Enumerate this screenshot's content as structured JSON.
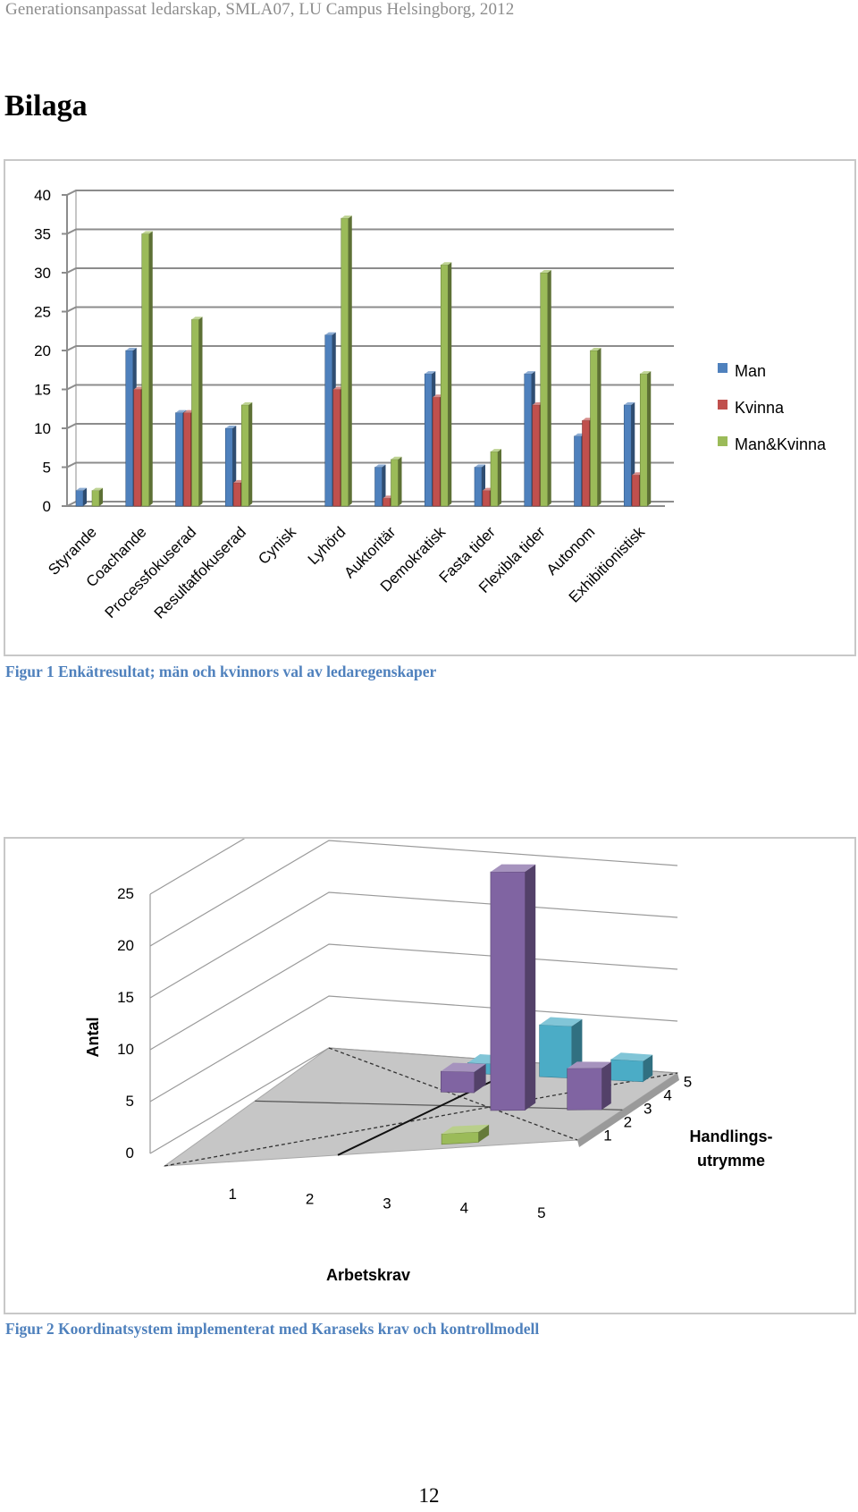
{
  "header": {
    "running_title": "Generationsanpassat ledarskap, SMLA07, LU Campus Helsingborg, 2012"
  },
  "section": {
    "title": "Bilaga"
  },
  "figure1": {
    "caption": "Figur 1 Enkätresultat; män och kvinnors val av ledaregenskaper",
    "chart_data": {
      "type": "bar",
      "title": "",
      "xlabel": "",
      "ylabel": "",
      "ylim": [
        0,
        40
      ],
      "yticks": [
        0,
        5,
        10,
        15,
        20,
        25,
        30,
        35,
        40
      ],
      "grid": true,
      "legend_position": "right",
      "categories": [
        "Styrande",
        "Coachande",
        "Processfokuserad",
        "Resultatfokuserad",
        "Cynisk",
        "Lyhörd",
        "Auktoritär",
        "Demokratisk",
        "Fasta tider",
        "Flexibla tider",
        "Autonom",
        "Exhibitionistisk"
      ],
      "series": [
        {
          "name": "Man",
          "color": "#4f81bd",
          "values": [
            2,
            20,
            12,
            10,
            0,
            22,
            5,
            17,
            5,
            17,
            9,
            13
          ]
        },
        {
          "name": "Kvinna",
          "color": "#c0504d",
          "values": [
            0,
            15,
            12,
            3,
            0,
            15,
            1,
            14,
            2,
            13,
            11,
            4
          ]
        },
        {
          "name": "Man&Kvinna",
          "color": "#9bbb59",
          "values": [
            2,
            35,
            24,
            13,
            0,
            37,
            6,
            31,
            7,
            30,
            20,
            17
          ]
        }
      ]
    }
  },
  "figure2": {
    "caption": "Figur 2 Koordinatsystem implementerat med Karaseks krav och kontrollmodell",
    "chart_data": {
      "type": "bar",
      "projection": "3d",
      "zlabel": "Antal",
      "xlabel": "Arbetskrav",
      "ylabel": "Handlings-utrymme",
      "zlim": [
        0,
        25
      ],
      "zticks": [
        0,
        5,
        10,
        15,
        20,
        25
      ],
      "x_ticks": [
        "1",
        "2",
        "3",
        "4",
        "5"
      ],
      "y_ticks": [
        "1",
        "2",
        "3",
        "4",
        "5"
      ],
      "grid": true,
      "bars": [
        {
          "x": 3,
          "y": 4,
          "value": 2,
          "color": "#8064a2"
        },
        {
          "x": 3,
          "y": 5,
          "value": 1,
          "color": "#4bacc6"
        },
        {
          "x": 4,
          "y": 1,
          "value": 1,
          "color": "#9bbb59"
        },
        {
          "x": 4,
          "y": 3,
          "value": 23,
          "color": "#8064a2"
        },
        {
          "x": 4,
          "y": 5,
          "value": 5,
          "color": "#4bacc6"
        },
        {
          "x": 5,
          "y": 3,
          "value": 4,
          "color": "#8064a2"
        },
        {
          "x": 5,
          "y": 5,
          "value": 2,
          "color": "#4bacc6"
        }
      ]
    }
  },
  "footer": {
    "page_number": "12"
  }
}
